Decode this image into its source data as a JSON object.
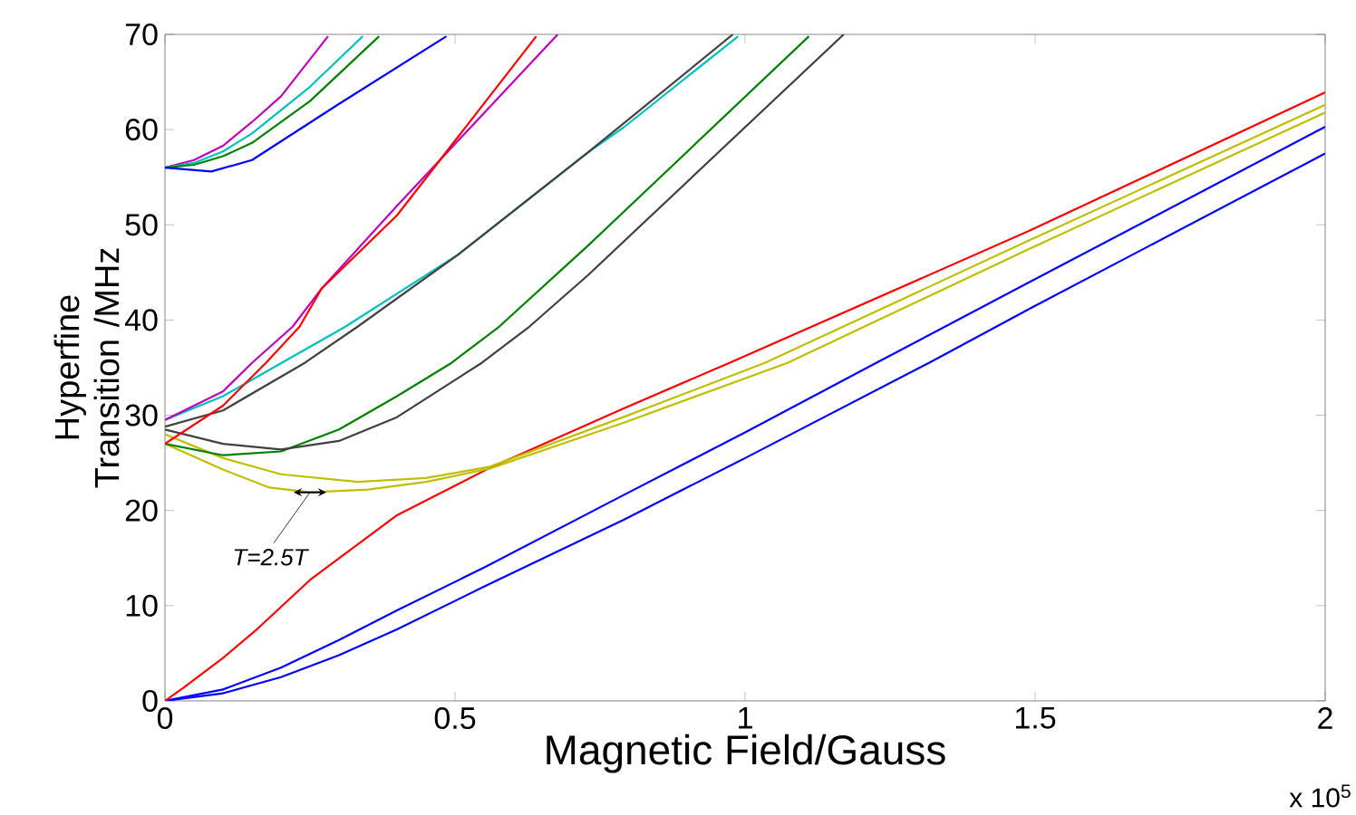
{
  "chart_data": {
    "type": "line",
    "xlabel": "Magnetic Field/Gauss",
    "ylabel": "Hyperfine Transition /MHz",
    "xlim": [
      0,
      2
    ],
    "ylim": [
      0,
      70
    ],
    "xticks": [
      0,
      0.5,
      1,
      1.5,
      2
    ],
    "yticks": [
      0,
      10,
      20,
      30,
      40,
      50,
      60,
      70
    ],
    "grid": false,
    "annotations": [
      {
        "text": "T=2.5T",
        "x": 0.25,
        "y": 21.9
      },
      "x 10$^{5}$"
    ],
    "series": [
      {
        "color": "#0000ff",
        "x": [
          0,
          0.1,
          0.2,
          0.3,
          0.4,
          0.55,
          0.79,
          1.0,
          1.226,
          1.491,
          2
        ],
        "values": [
          0,
          1.2,
          3.5,
          6.4,
          9.5,
          14,
          21.6,
          28.2,
          35.5,
          44,
          60.3
        ]
      },
      {
        "color": "#0000ff",
        "x": [
          0,
          0.1,
          0.2,
          0.3,
          0.4,
          0.55,
          0.79,
          1.0,
          1.317,
          1.491,
          2
        ],
        "values": [
          0,
          0.8,
          2.5,
          4.8,
          7.5,
          12,
          19,
          25.5,
          35.5,
          41.2,
          57.5
        ]
      },
      {
        "color": "#ff0000",
        "x": [
          0,
          0.03,
          0.1,
          0.16,
          0.25,
          0.4,
          0.561,
          0.79,
          0.973,
          1.491,
          2
        ],
        "values": [
          0,
          1.3,
          4.5,
          7.6,
          12.7,
          19.5,
          24.5,
          30.7,
          35.5,
          49.4,
          63.9
        ]
      },
      {
        "color": "#bfbf00",
        "x": [
          0,
          0.1,
          0.2,
          0.332,
          0.45,
          0.56,
          0.79,
          1.034,
          1.491,
          2
        ],
        "values": [
          28,
          25.5,
          23.8,
          23,
          23.4,
          24.6,
          29.8,
          35.5,
          48.4,
          62.6
        ]
      },
      {
        "color": "#bfbf00",
        "x": [
          0,
          0.1,
          0.18,
          0.25,
          0.35,
          0.45,
          0.56,
          0.79,
          1.073,
          1.491,
          2
        ],
        "values": [
          27,
          24.3,
          22.4,
          21.9,
          22.2,
          23,
          24.4,
          29.2,
          35.5,
          47.5,
          61.8
        ]
      },
      {
        "color": "#008000",
        "x": [
          0,
          0.1,
          0.2,
          0.3,
          0.4,
          0.494,
          0.576,
          0.729,
          1.11
        ],
        "values": [
          27,
          25.8,
          26.2,
          28.5,
          32,
          35.5,
          39.3,
          47.8,
          69.8
        ]
      },
      {
        "color": "#404040",
        "x": [
          0,
          0.1,
          0.2,
          0.3,
          0.4,
          0.546,
          0.628,
          0.729,
          1.17
        ],
        "values": [
          28.5,
          27,
          26.4,
          27.3,
          29.8,
          35.5,
          39.3,
          44.7,
          70
        ]
      },
      {
        "color": "#00bfbf",
        "x": [
          0,
          0.1,
          0.201,
          0.311,
          0.506,
          0.729,
          0.79,
          0.988
        ],
        "values": [
          29.5,
          32,
          35.5,
          39.3,
          46.9,
          57.6,
          60.2,
          69.8
        ]
      },
      {
        "color": "#404040",
        "x": [
          0,
          0.1,
          0.241,
          0.332,
          0.506,
          0.729,
          0.979
        ],
        "values": [
          28.8,
          30.5,
          35.5,
          39.3,
          46.9,
          57.6,
          70
        ]
      },
      {
        "color": "#bf00bf",
        "x": [
          0,
          0.1,
          0.15,
          0.22,
          0.27,
          0.4,
          0.677
        ],
        "values": [
          29.5,
          32.5,
          35.5,
          39.3,
          43.3,
          52,
          70
        ]
      },
      {
        "color": "#ff0000",
        "x": [
          0,
          0.1,
          0.174,
          0.232,
          0.27,
          0.4,
          0.64
        ],
        "values": [
          27,
          31,
          35.5,
          39.3,
          43.3,
          51,
          69.8
        ]
      },
      {
        "color": "#bf00bf",
        "x": [
          0,
          0.05,
          0.1,
          0.15,
          0.2,
          0.281
        ],
        "values": [
          56,
          56.8,
          58.3,
          60.8,
          63.5,
          69.8
        ]
      },
      {
        "color": "#00bfbf",
        "x": [
          0,
          0.05,
          0.1,
          0.15,
          0.25,
          0.341
        ],
        "values": [
          56,
          56.5,
          57.7,
          59.6,
          64.5,
          69.8
        ]
      },
      {
        "color": "#008000",
        "x": [
          0,
          0.05,
          0.1,
          0.15,
          0.25,
          0.369
        ],
        "values": [
          56,
          56.3,
          57.2,
          58.6,
          63,
          69.8
        ]
      },
      {
        "color": "#0000ff",
        "x": [
          0,
          0.08,
          0.15,
          0.3,
          0.485
        ],
        "values": [
          56,
          55.6,
          56.8,
          62.7,
          69.8
        ]
      }
    ]
  }
}
